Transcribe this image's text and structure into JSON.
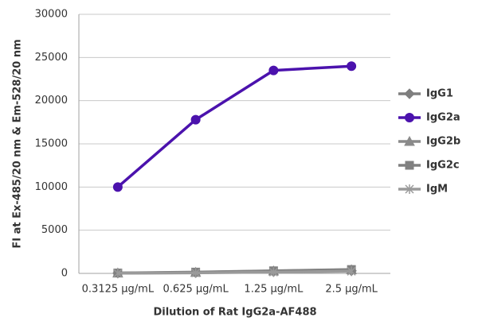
{
  "chart_data": {
    "type": "line",
    "x_label": "Dilution of Rat IgG2a-AF488",
    "y_label": "FI at Ex-485/20 nm & Em-528/20 nm",
    "categories": [
      "0.3125 µg/mL",
      "0.625 µg/mL",
      "1.25 µg/mL",
      "2.5 µg/mL"
    ],
    "series": [
      {
        "name": "IgG1",
        "color": "#7f7f7f",
        "marker": "diamond",
        "values": [
          30,
          80,
          200,
          300
        ]
      },
      {
        "name": "IgG2a",
        "color": "#4b12ad",
        "marker": "circle",
        "values": [
          10000,
          17800,
          23500,
          24000
        ]
      },
      {
        "name": "IgG2b",
        "color": "#8a8a8a",
        "marker": "triangle",
        "values": [
          40,
          120,
          280,
          420
        ]
      },
      {
        "name": "IgG2c",
        "color": "#808080",
        "marker": "square",
        "values": [
          50,
          150,
          300,
          450
        ]
      },
      {
        "name": "IgM",
        "color": "#9a9a9a",
        "marker": "asterisk",
        "values": [
          20,
          60,
          150,
          250
        ]
      }
    ],
    "ylim": [
      0,
      30000
    ],
    "yticks": [
      0,
      5000,
      10000,
      15000,
      20000,
      25000,
      30000
    ],
    "grid": true,
    "legend": "right"
  }
}
